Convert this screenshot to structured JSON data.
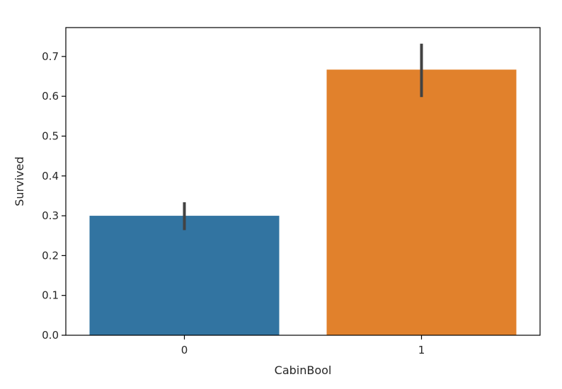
{
  "chart_data": {
    "type": "bar",
    "categories": [
      "0",
      "1"
    ],
    "values": [
      0.3,
      0.667
    ],
    "error_bars": [
      [
        0.264,
        0.334
      ],
      [
        0.598,
        0.732
      ]
    ],
    "colors": [
      "#3274a1",
      "#e1812c"
    ],
    "errorbar_color": "#424242",
    "xlabel": "CabinBool",
    "ylabel": "Survived",
    "ylim": [
      0,
      0.7725
    ],
    "yticks": [
      "0.0",
      "0.1",
      "0.2",
      "0.3",
      "0.4",
      "0.5",
      "0.6",
      "0.7"
    ],
    "grid": false,
    "legend": "none"
  }
}
